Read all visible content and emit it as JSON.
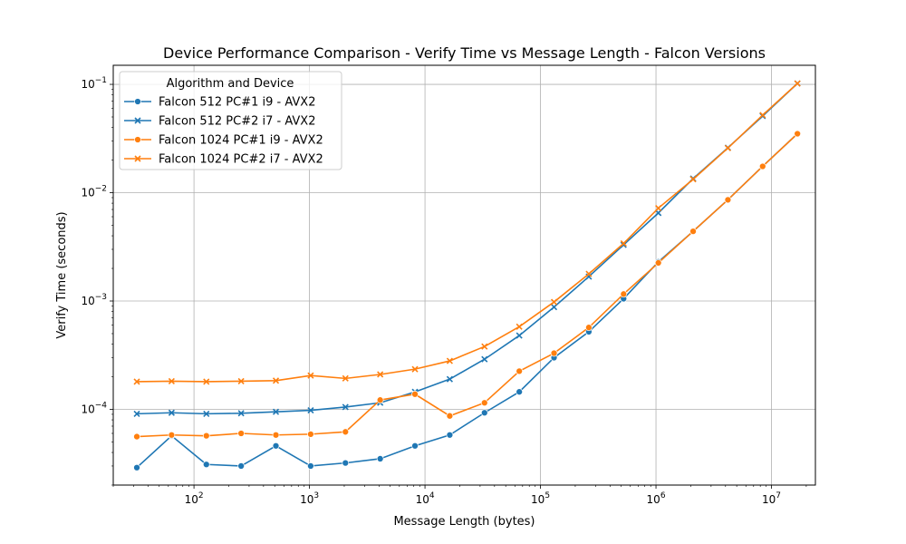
{
  "chart_data": {
    "type": "line",
    "title": "Device Performance Comparison - Verify Time vs Message Length - Falcon Versions",
    "xlabel": "Message Length (bytes)",
    "ylabel": "Verify Time (seconds)",
    "x_scale": "log",
    "y_scale": "log",
    "xlim": [
      20,
      24000000
    ],
    "ylim": [
      2e-05,
      0.15
    ],
    "x_ticks": [
      {
        "value": 100,
        "base": "10",
        "exp": "2"
      },
      {
        "value": 1000,
        "base": "10",
        "exp": "3"
      },
      {
        "value": 10000,
        "base": "10",
        "exp": "4"
      },
      {
        "value": 100000,
        "base": "10",
        "exp": "5"
      },
      {
        "value": 1000000,
        "base": "10",
        "exp": "6"
      },
      {
        "value": 10000000,
        "base": "10",
        "exp": "7"
      }
    ],
    "y_ticks": [
      {
        "value": 0.0001,
        "base": "10",
        "exp": "−4"
      },
      {
        "value": 0.001,
        "base": "10",
        "exp": "−3"
      },
      {
        "value": 0.01,
        "base": "10",
        "exp": "−2"
      },
      {
        "value": 0.1,
        "base": "10",
        "exp": "−1"
      }
    ],
    "grid": true,
    "legend": {
      "title": "Algorithm and Device",
      "position": "top-left"
    },
    "x": [
      32,
      64,
      128,
      256,
      512,
      1024,
      2048,
      4096,
      8192,
      16384,
      32768,
      65536,
      131072,
      262144,
      524288,
      1048576,
      2097152,
      4194304,
      8388608,
      16777216
    ],
    "series": [
      {
        "name": "Falcon 512 PC#1 i9 - AVX2",
        "color": "#1f77b4",
        "marker": "circle",
        "values": [
          2.9e-05,
          5.7e-05,
          3.1e-05,
          3e-05,
          4.6e-05,
          3e-05,
          3.2e-05,
          3.5e-05,
          4.6e-05,
          5.8e-05,
          9.3e-05,
          0.000145,
          0.0003,
          0.00052,
          0.00105,
          0.0023,
          0.0044,
          0.0086,
          0.0175,
          0.035
        ]
      },
      {
        "name": "Falcon 512 PC#2 i7 - AVX2",
        "color": "#1f77b4",
        "marker": "x",
        "values": [
          9.1e-05,
          9.3e-05,
          9.1e-05,
          9.2e-05,
          9.5e-05,
          9.8e-05,
          0.000105,
          0.000115,
          0.000145,
          0.00019,
          0.00029,
          0.00048,
          0.00088,
          0.00168,
          0.0033,
          0.0065,
          0.0135,
          0.026,
          0.051,
          0.102
        ]
      },
      {
        "name": "Falcon 1024 PC#1 i9 - AVX2",
        "color": "#ff7f0e",
        "marker": "circle",
        "values": [
          5.6e-05,
          5.8e-05,
          5.7e-05,
          6e-05,
          5.8e-05,
          5.9e-05,
          6.2e-05,
          0.000122,
          0.000138,
          8.7e-05,
          0.000115,
          0.000225,
          0.00033,
          0.00057,
          0.00116,
          0.00225,
          0.0044,
          0.0086,
          0.0175,
          0.035
        ]
      },
      {
        "name": "Falcon 1024 PC#2 i7 - AVX2",
        "color": "#ff7f0e",
        "marker": "x",
        "values": [
          0.00018,
          0.000182,
          0.00018,
          0.000182,
          0.000184,
          0.000205,
          0.000193,
          0.00021,
          0.000235,
          0.00028,
          0.00038,
          0.00058,
          0.00098,
          0.00178,
          0.0034,
          0.0072,
          0.0133,
          0.0258,
          0.052,
          0.102
        ]
      }
    ]
  }
}
